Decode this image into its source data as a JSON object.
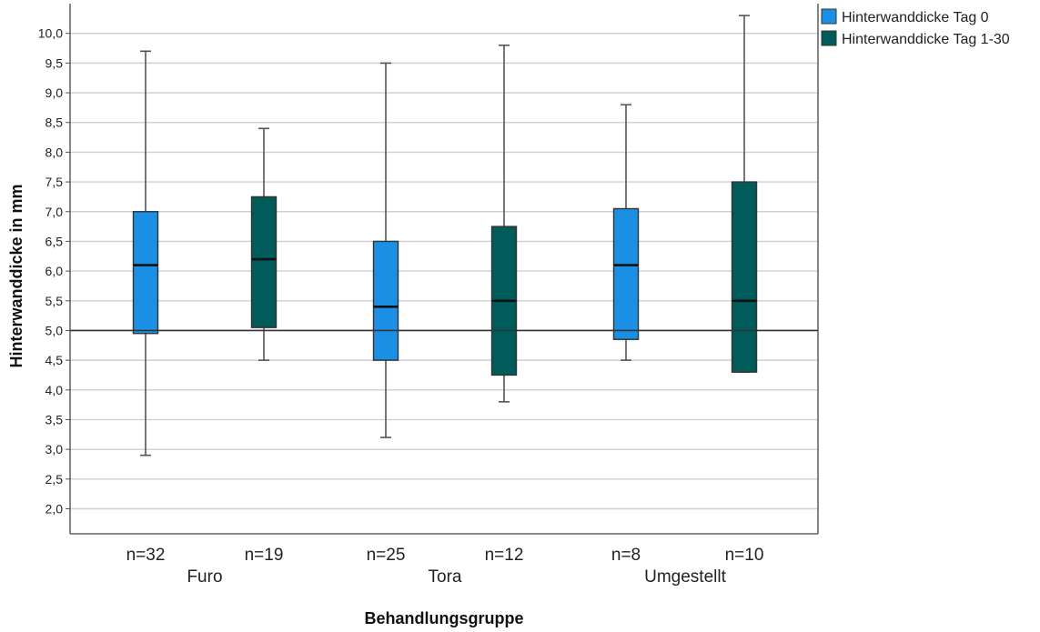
{
  "chart_data": {
    "type": "boxplot",
    "ylabel": "Hinterwanddicke in mm",
    "xlabel": "Behandlungsgruppe",
    "ylim": [
      1.6,
      10.5
    ],
    "yticks": [
      2.0,
      2.5,
      3.0,
      3.5,
      4.0,
      4.5,
      5.0,
      5.5,
      6.0,
      6.5,
      7.0,
      7.5,
      8.0,
      8.5,
      9.0,
      9.5,
      10.0
    ],
    "ytick_labels": [
      "2,0",
      "2,5",
      "3,0",
      "3,5",
      "4,0",
      "4,5",
      "5,0",
      "5,5",
      "6,0",
      "6,5",
      "7,0",
      "7,5",
      "8,0",
      "8,5",
      "9,0",
      "9,5",
      "10,0"
    ],
    "grid": true,
    "reference_line": 5.0,
    "legend_position": "top-right",
    "categories": [
      "Furo",
      "Tora",
      "Umgestellt"
    ],
    "series": [
      {
        "name": "Hinterwanddicke Tag 0",
        "color": "#1a8fe3",
        "boxes": [
          {
            "n_label": "n=32",
            "min": 2.9,
            "q1": 4.95,
            "median": 6.1,
            "q3": 7.0,
            "max": 9.7
          },
          {
            "n_label": "n=25",
            "min": 3.2,
            "q1": 4.5,
            "median": 5.4,
            "q3": 6.5,
            "max": 9.5
          },
          {
            "n_label": "n=8",
            "min": 4.5,
            "q1": 4.85,
            "median": 6.1,
            "q3": 7.05,
            "max": 8.8
          }
        ]
      },
      {
        "name": "Hinterwanddicke Tag 1-30",
        "color": "#005b5b",
        "boxes": [
          {
            "n_label": "n=19",
            "min": 4.5,
            "q1": 5.05,
            "median": 6.2,
            "q3": 7.25,
            "max": 8.4
          },
          {
            "n_label": "n=12",
            "min": 3.8,
            "q1": 4.25,
            "median": 5.5,
            "q3": 6.75,
            "max": 9.8
          },
          {
            "n_label": "n=10",
            "min": 4.3,
            "q1": 4.3,
            "median": 5.5,
            "q3": 7.5,
            "max": 10.3
          }
        ]
      }
    ]
  }
}
